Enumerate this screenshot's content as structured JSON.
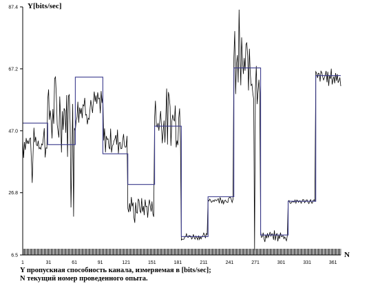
{
  "chart_data": {
    "type": "line",
    "ylabel": "Y[bits/sec]",
    "xlabel": "N",
    "ylim": [
      6.5,
      87.4
    ],
    "xlim": [
      1,
      370
    ],
    "y_ticks": [
      "6.5",
      "26.8",
      "47.0",
      "67.2",
      "87.4"
    ],
    "y_tick_values": [
      6.5,
      26.8,
      47.0,
      67.2,
      87.4
    ],
    "x_ticks": [
      "1",
      "31",
      "61",
      "91",
      "121",
      "151",
      "181",
      "211",
      "241",
      "271",
      "301",
      "331",
      "361"
    ],
    "x_tick_values": [
      1,
      31,
      61,
      91,
      121,
      151,
      181,
      211,
      241,
      271,
      301,
      331,
      361
    ],
    "grid": false,
    "series": [
      {
        "role": "measured",
        "segments": [
          {
            "start": 1,
            "end": 28,
            "mean": 44,
            "noise": 6
          },
          {
            "start": 29,
            "end": 62,
            "mean": 52,
            "noise": 11
          },
          {
            "start": 63,
            "end": 94,
            "mean": 55,
            "noise": 5
          },
          {
            "start": 95,
            "end": 122,
            "mean": 44,
            "noise": 4
          },
          {
            "start": 123,
            "end": 153,
            "mean": 22,
            "noise": 3
          },
          {
            "start": 154,
            "end": 184,
            "mean": 51,
            "noise": 8
          },
          {
            "start": 185,
            "end": 215,
            "mean": 12.5,
            "noise": 1
          },
          {
            "start": 216,
            "end": 245,
            "mean": 24.5,
            "noise": 1
          },
          {
            "start": 246,
            "end": 276,
            "mean": 67,
            "noise": 10
          },
          {
            "start": 277,
            "end": 308,
            "mean": 12.5,
            "noise": 1.5
          },
          {
            "start": 309,
            "end": 340,
            "mean": 24,
            "noise": 0.7
          },
          {
            "start": 341,
            "end": 370,
            "mean": 64.5,
            "noise": 2.5
          }
        ],
        "outliers": [
          {
            "x": 12,
            "y": 30
          },
          {
            "x": 57,
            "y": 22
          },
          {
            "x": 60,
            "y": 19
          },
          {
            "x": 131,
            "y": 17
          },
          {
            "x": 252,
            "y": 86.5
          },
          {
            "x": 270,
            "y": 8
          }
        ]
      },
      {
        "role": "segment-mean",
        "steps": [
          {
            "start": 1,
            "end": 30,
            "value": 49.5
          },
          {
            "start": 30,
            "end": 62,
            "value": 42.5
          },
          {
            "start": 62,
            "end": 94,
            "value": 64.5
          },
          {
            "start": 94,
            "end": 123,
            "value": 39.5
          },
          {
            "start": 123,
            "end": 154,
            "value": 29.5
          },
          {
            "start": 154,
            "end": 185,
            "value": 48.5
          },
          {
            "start": 185,
            "end": 216,
            "value": 12.5
          },
          {
            "start": 216,
            "end": 246,
            "value": 25.5
          },
          {
            "start": 246,
            "end": 277,
            "value": 67.5
          },
          {
            "start": 277,
            "end": 309,
            "value": 13
          },
          {
            "start": 309,
            "end": 341,
            "value": 24
          },
          {
            "start": 341,
            "end": 370,
            "value": 65
          }
        ]
      }
    ],
    "colors": {
      "measured": "#000000",
      "segment_mean": "#3a3a8c",
      "axis": "#000000"
    },
    "seed": 7
  },
  "caption": {
    "line1": "Y пропускная способность канала, измеряемая в [bits/sec];",
    "line2": "N текущий номер проведенного опыта."
  }
}
